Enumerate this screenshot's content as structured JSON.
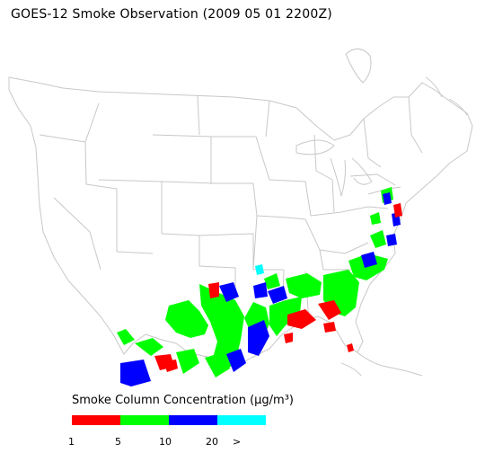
{
  "title": "GOES-12 Smoke Observation (2009 05 01  2200Z)",
  "legend": {
    "title": "Smoke Column Concentration (μg/m³)",
    "bins": [
      {
        "color": "#ff0000"
      },
      {
        "color": "#00ff00"
      },
      {
        "color": "#0000ff"
      },
      {
        "color": "#00ffff"
      }
    ],
    "ticks": [
      "1",
      "5",
      "10",
      "20",
      ">"
    ]
  },
  "colors": {
    "boundaries": "#c8c8c8",
    "background": "#ffffff"
  }
}
